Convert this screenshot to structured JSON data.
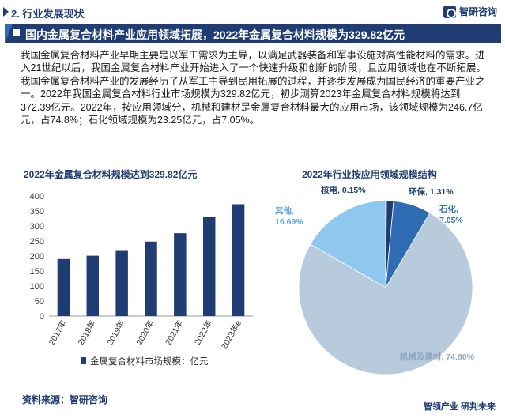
{
  "header": {
    "section_label": "2. 行业发展现状",
    "logo_text": "智研咨询"
  },
  "banner": {
    "title": "国内金属复合材料产业应用领域拓展，2022年金属复合材料规模为329.82亿元"
  },
  "body": {
    "paragraph1": "我国金属复合材料产业早期主要是以军工需求为主导，以满足武器装备和军事设施对高性能材料的需求。进入21世纪以后，我国金属复合材料产业开始进入了一个快速升级和创新的阶段，且应用领域也在不断拓展。",
    "paragraph2": "我国金属复合材料产业的发展经历了从军工主导到民用拓展的过程，并逐步发展成为国民经济的重要产业之一。2022年我国金属复合材料行业市场规模为329.82亿元，初步测算2023年金属复合材料规模将达到372.39亿元。2022年，按应用领域分，机械和建材是金属复合材料最大的应用市场，该领域规模为246.7亿元，占74.8%；石化领域规模为23.25亿元，占7.05%。"
  },
  "footer": {
    "source": "资料来源：智研咨询",
    "brand": "智领产业  研判未来"
  },
  "colors": {
    "navy": "#1f3d73",
    "bar": "#1f3d73",
    "pie_machinery": "#b7cbdc",
    "pie_other": "#8fc8ef",
    "pie_petrochem": "#2f6cb3",
    "pie_envir": "#1f3d73",
    "pie_nuclear": "#5b84c4"
  },
  "chart_data": [
    {
      "type": "bar",
      "title": "2022年金属复合材料规模达到329.82亿元",
      "categories": [
        "2017年",
        "2018年",
        "2019年",
        "2020年",
        "2021年",
        "2022年",
        "2023年e"
      ],
      "series": [
        {
          "name": "金属复合材料市场规模：亿元",
          "values": [
            190,
            201,
            217,
            248,
            276,
            329.82,
            372.39
          ]
        }
      ],
      "yticks": [
        "0",
        "50",
        "100",
        "150",
        "200",
        "250",
        "300",
        "350",
        "400"
      ],
      "ylim": [
        0,
        400
      ],
      "legend": "bottom"
    },
    {
      "type": "pie",
      "title": "2022年行业按应用领域规模结构",
      "slices": [
        {
          "name": "核电",
          "value": 0.15,
          "label": "核电, 0.15%",
          "color_key": "pie_nuclear"
        },
        {
          "name": "环保",
          "value": 1.31,
          "label": "环保, 1.31%",
          "color_key": "pie_envir"
        },
        {
          "name": "石化",
          "value": 7.05,
          "label": "石化,\n7.05%",
          "color_key": "pie_petrochem"
        },
        {
          "name": "机械及建材",
          "value": 74.8,
          "label": "机械及建材, 74.80%",
          "color_key": "pie_machinery"
        },
        {
          "name": "其他",
          "value": 16.69,
          "label": "其他,\n16.69%",
          "color_key": "pie_other"
        }
      ]
    }
  ]
}
